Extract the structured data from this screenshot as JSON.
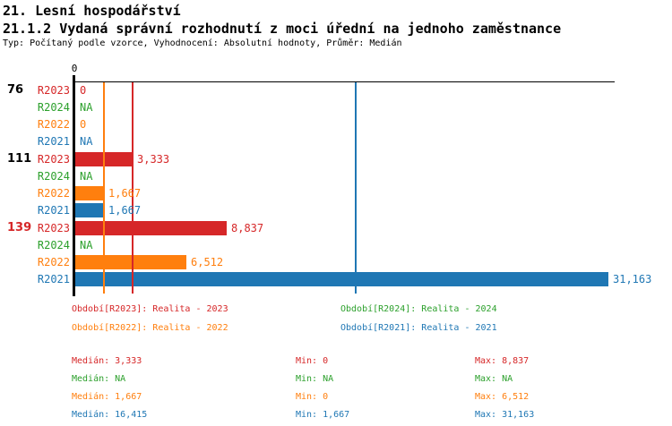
{
  "header": {
    "title": "21. Lesní hospodářství",
    "subtitle": "21.1.2 Vydaná správní rozhodnutí z moci úřední na jednoho zaměstnance",
    "meta": "Typ: Počítaný podle vzorce, Vyhodnocení: Absolutní hodnoty, Průměr: Medián"
  },
  "colors": {
    "R2023": "#d62728",
    "R2024": "#2ca02c",
    "R2022": "#ff7f0e",
    "R2021": "#1f77b4",
    "axis": "#000000"
  },
  "chart_data": {
    "type": "bar",
    "orientation": "horizontal",
    "x_axis": {
      "tick_labels": [
        "0"
      ],
      "min": 0,
      "max": 31163,
      "grid": false
    },
    "series_order": [
      "R2023",
      "R2024",
      "R2022",
      "R2021"
    ],
    "groups": [
      {
        "label": "76",
        "label_color": "#000000",
        "bars": [
          {
            "series": "R2023",
            "value": 0,
            "display": "0"
          },
          {
            "series": "R2024",
            "value": null,
            "display": "NA"
          },
          {
            "series": "R2022",
            "value": 0,
            "display": "0"
          },
          {
            "series": "R2021",
            "value": null,
            "display": "NA"
          }
        ]
      },
      {
        "label": "111",
        "label_color": "#000000",
        "bars": [
          {
            "series": "R2023",
            "value": 3333,
            "display": "3,333"
          },
          {
            "series": "R2024",
            "value": null,
            "display": "NA"
          },
          {
            "series": "R2022",
            "value": 1667,
            "display": "1,667"
          },
          {
            "series": "R2021",
            "value": 1667,
            "display": "1,667"
          }
        ]
      },
      {
        "label": "139",
        "label_color": "#d62728",
        "bars": [
          {
            "series": "R2023",
            "value": 8837,
            "display": "8,837"
          },
          {
            "series": "R2024",
            "value": null,
            "display": "NA"
          },
          {
            "series": "R2022",
            "value": 6512,
            "display": "6,512"
          },
          {
            "series": "R2021",
            "value": 31163,
            "display": "31,163"
          }
        ]
      }
    ],
    "median_lines": [
      {
        "series": "R2022",
        "value": 1667,
        "color": "#ff7f0e"
      },
      {
        "series": "R2023",
        "value": 3333,
        "color": "#d62728"
      },
      {
        "series": "R2021",
        "value": 16415,
        "color": "#1f77b4"
      }
    ]
  },
  "legend": {
    "items": [
      {
        "text": "Období[R2023]: Realita - 2023",
        "color": "#d62728"
      },
      {
        "text": "Období[R2024]: Realita - 2024",
        "color": "#2ca02c"
      },
      {
        "text": "Období[R2022]: Realita - 2022",
        "color": "#ff7f0e"
      },
      {
        "text": "Období[R2021]: Realita - 2021",
        "color": "#1f77b4"
      }
    ]
  },
  "summary": {
    "rows": [
      {
        "series": "R2023",
        "color": "#d62728",
        "median": "Medián: 3,333",
        "min": "Min: 0",
        "max": "Max: 8,837"
      },
      {
        "series": "R2024",
        "color": "#2ca02c",
        "median": "Medián: NA",
        "min": "Min: NA",
        "max": "Max: NA"
      },
      {
        "series": "R2022",
        "color": "#ff7f0e",
        "median": "Medián: 1,667",
        "min": "Min: 0",
        "max": "Max: 6,512"
      },
      {
        "series": "R2021",
        "color": "#1f77b4",
        "median": "Medián: 16,415",
        "min": "Min: 1,667",
        "max": "Max: 31,163"
      }
    ]
  }
}
